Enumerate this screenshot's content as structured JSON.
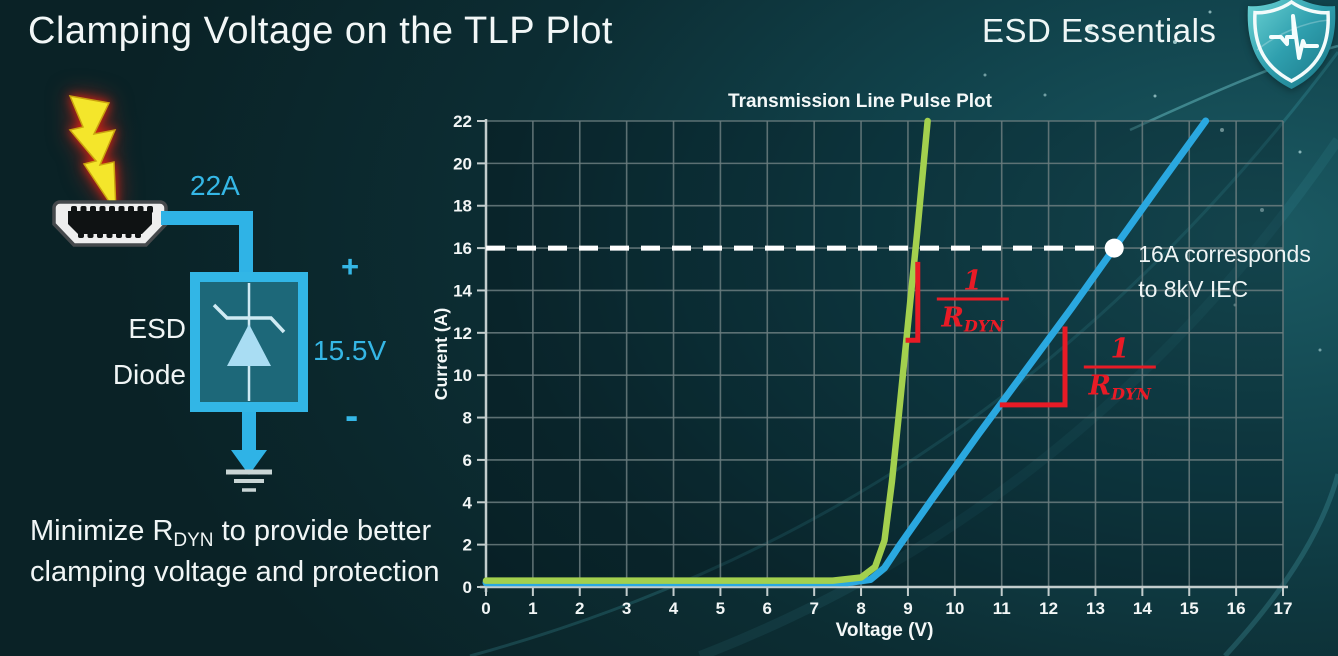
{
  "header": {
    "title": "Clamping Voltage on the TLP Plot",
    "brand": "ESD Essentials",
    "brand_icon": "shield-pulse-icon"
  },
  "diagram": {
    "surge_label": "22A",
    "device_label_lines": [
      "ESD",
      "Diode"
    ],
    "plus": "+",
    "minus": "-",
    "clamp_voltage": "15.5V",
    "icons": {
      "strike": "lightning-icon",
      "port": "hdmi-connector-icon",
      "ground": "ground-icon"
    },
    "wire_color": "#2fb3e6",
    "label_color": "#35b7e6"
  },
  "note": {
    "prefix": "Minimize R",
    "sub": "DYN",
    "suffix": " to provide better clamping voltage and protection"
  },
  "chart_data": {
    "type": "line",
    "title": "Transmission Line Pulse Plot",
    "xlabel": "Voltage (V)",
    "ylabel": "Current (A)",
    "xlim": [
      0,
      17
    ],
    "ylim": [
      0,
      22
    ],
    "xticks": [
      0,
      1,
      2,
      3,
      4,
      5,
      6,
      7,
      8,
      9,
      10,
      11,
      12,
      13,
      14,
      15,
      16,
      17
    ],
    "yticks": [
      0,
      2,
      4,
      6,
      8,
      10,
      12,
      14,
      16,
      18,
      20,
      22
    ],
    "grid": true,
    "legend": "none",
    "series": [
      {
        "name": "blue-diode-iv-curve-high-rdyn",
        "color": "#2aa8e0",
        "width": 7,
        "points": [
          [
            0,
            0.2
          ],
          [
            7.7,
            0.2
          ],
          [
            8.2,
            0.35
          ],
          [
            8.5,
            0.9
          ],
          [
            8.8,
            1.9
          ],
          [
            9.5,
            4.1
          ],
          [
            10.5,
            7.2
          ],
          [
            11.5,
            10.2
          ],
          [
            12.5,
            13.2
          ],
          [
            13.4,
            16
          ],
          [
            14.4,
            19.1
          ],
          [
            15.35,
            22
          ]
        ]
      },
      {
        "name": "green-diode-iv-curve-low-rdyn",
        "color": "#a3d04e",
        "width": 6.5,
        "points": [
          [
            0,
            0.3
          ],
          [
            7.4,
            0.3
          ],
          [
            8.0,
            0.45
          ],
          [
            8.3,
            0.95
          ],
          [
            8.5,
            2.2
          ],
          [
            8.66,
            5
          ],
          [
            8.8,
            8
          ],
          [
            9.0,
            12.4
          ],
          [
            9.2,
            16.8
          ],
          [
            9.42,
            22
          ]
        ]
      }
    ],
    "reference_line": {
      "y": 16,
      "color": "#ffffff",
      "style": "dashed",
      "label_lines": [
        "16A corresponds",
        "to 8kV IEC"
      ]
    },
    "marker": {
      "x": 13.4,
      "y": 16,
      "color": "#ffffff"
    },
    "slope_indicators": [
      {
        "series": "green",
        "color": "#e81b26",
        "points": [
          [
            9.21,
            15.35
          ],
          [
            9.21,
            11.65
          ],
          [
            8.95,
            11.65
          ]
        ]
      },
      {
        "series": "blue",
        "color": "#e81b26",
        "points": [
          [
            10.96,
            8.6
          ],
          [
            12.35,
            8.6
          ],
          [
            12.35,
            12.3
          ]
        ]
      }
    ],
    "rdyn_label": {
      "numerator": "1",
      "denominator_base": "R",
      "denominator_sub": "DYN",
      "color": "#e81b26"
    },
    "rdyn_label_positions": [
      {
        "x": 10.38,
        "y": 13.5
      },
      {
        "x": 13.52,
        "y": 10.3
      }
    ]
  }
}
